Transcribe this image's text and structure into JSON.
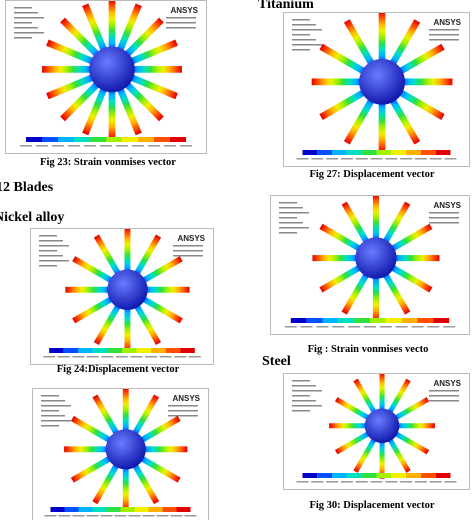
{
  "titanium_heading": "Titanium",
  "blades_heading": "12 Blades",
  "nickel_heading": "Nickel alloy",
  "steel_heading": "Steel",
  "figures": [
    {
      "logo": "ANSYS",
      "caption": "Fig 23: Strain vonmises vector"
    },
    {
      "logo": "ANSYS",
      "caption": "Fig 24:Displacement vector"
    },
    {
      "logo": "ANSYS"
    },
    {
      "logo": "ANSYS",
      "caption": "Fig 27: Displacement vector"
    },
    {
      "logo": "ANSYS",
      "caption": "Fig : Strain vonmises vecto"
    },
    {
      "logo": "ANSYS",
      "caption": "Fig 30: Displacement vector"
    }
  ]
}
